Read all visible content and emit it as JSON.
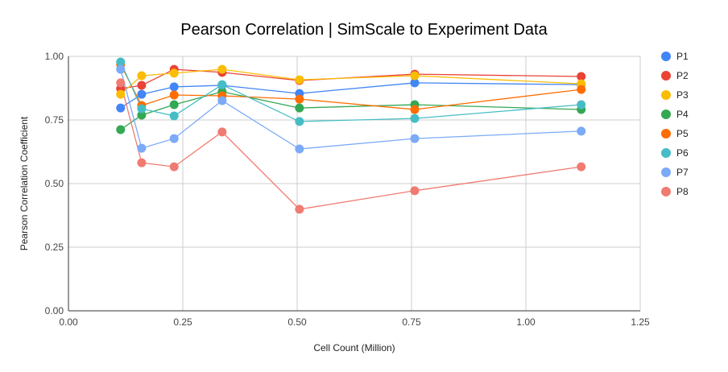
{
  "chart_data": {
    "type": "line",
    "title": "Pearson Correlation | SimScale to Experiment Data",
    "xlabel": "Cell Count (Million)",
    "ylabel": "Pearson Correlation Coefficient",
    "xlim": [
      0,
      1.25
    ],
    "ylim": [
      0,
      1.0
    ],
    "x_ticks": [
      "0.00",
      "0.25",
      "0.50",
      "0.75",
      "1.00",
      "1.25"
    ],
    "y_ticks": [
      "0.00",
      "0.25",
      "0.50",
      "0.75",
      "1.00"
    ],
    "grid": "vertical",
    "legend_position": "right",
    "x": [
      0.114,
      0.16,
      0.231,
      0.336,
      0.505,
      0.757,
      1.121
    ],
    "series": [
      {
        "name": "P1",
        "color": "#4285f4",
        "values": [
          0.797,
          0.851,
          0.88,
          0.886,
          0.854,
          0.896,
          0.889
        ]
      },
      {
        "name": "P2",
        "color": "#ea4335",
        "values": [
          0.873,
          0.886,
          0.949,
          0.937,
          0.905,
          0.93,
          0.921
        ]
      },
      {
        "name": "P3",
        "color": "#fbbc04",
        "values": [
          0.851,
          0.924,
          0.934,
          0.949,
          0.908,
          0.924,
          0.892
        ]
      },
      {
        "name": "P4",
        "color": "#34a853",
        "values": [
          0.712,
          0.769,
          0.81,
          0.861,
          0.797,
          0.81,
          0.791
        ]
      },
      {
        "name": "P5",
        "color": "#ff6d01",
        "values": [
          0.968,
          0.807,
          0.848,
          0.845,
          0.832,
          0.791,
          0.87
        ]
      },
      {
        "name": "P6",
        "color": "#46bdc6",
        "values": [
          0.978,
          0.794,
          0.766,
          0.889,
          0.744,
          0.756,
          0.81
        ]
      },
      {
        "name": "P7",
        "color": "#7baaf7",
        "values": [
          0.949,
          0.639,
          0.677,
          0.826,
          0.636,
          0.677,
          0.706
        ]
      },
      {
        "name": "P8",
        "color": "#f07b72",
        "values": [
          0.896,
          0.582,
          0.566,
          0.703,
          0.399,
          0.472,
          0.566
        ]
      }
    ]
  }
}
